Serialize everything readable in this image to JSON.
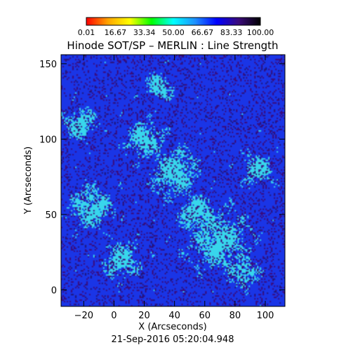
{
  "chart_data": {
    "type": "heatmap",
    "title": "Hinode SOT/SP – MERLIN : Line Strength",
    "xlabel": "X (Arcseconds)",
    "ylabel": "Y (Arcseconds)",
    "timestamp": "21-Sep-2016 05:20:04.948",
    "xlim": [
      -35,
      113
    ],
    "ylim": [
      -11,
      156
    ],
    "x_ticks": [
      -20,
      0,
      20,
      40,
      60,
      80,
      100
    ],
    "y_ticks": [
      0,
      50,
      100,
      150
    ],
    "colorbar": {
      "range": [
        0.01,
        100.0
      ],
      "tick_labels": [
        "0.01",
        "16.67",
        "33.34",
        "50.00",
        "66.67",
        "83.33",
        "100.00"
      ],
      "colormap": [
        "#ff0000",
        "#ffa500",
        "#ffff00",
        "#00ff00",
        "#00ffff",
        "#1e90ff",
        "#0000ff",
        "#3a0a7a",
        "#000000"
      ]
    },
    "field": {
      "dominant_value_range": [
        68,
        78
      ],
      "dominant_color": "#1a35e6",
      "secondary_value_range": [
        55,
        62
      ],
      "secondary_color": "#38d6ec",
      "speckle_value_range": [
        88,
        100
      ],
      "speckle_color": "#3a0a7a",
      "bright_regions": [
        {
          "x": 70,
          "y": 32,
          "r": 22,
          "value": 58
        },
        {
          "x": 40,
          "y": 78,
          "r": 18,
          "value": 60
        },
        {
          "x": 20,
          "y": 100,
          "r": 14,
          "value": 59
        },
        {
          "x": -15,
          "y": 55,
          "r": 16,
          "value": 61
        },
        {
          "x": 55,
          "y": 50,
          "r": 15,
          "value": 58
        },
        {
          "x": 5,
          "y": 20,
          "r": 14,
          "value": 60
        },
        {
          "x": -22,
          "y": 110,
          "r": 12,
          "value": 60
        },
        {
          "x": 95,
          "y": 80,
          "r": 12,
          "value": 60
        },
        {
          "x": 30,
          "y": 135,
          "r": 10,
          "value": 61
        },
        {
          "x": 85,
          "y": 12,
          "r": 11,
          "value": 60
        }
      ]
    }
  }
}
